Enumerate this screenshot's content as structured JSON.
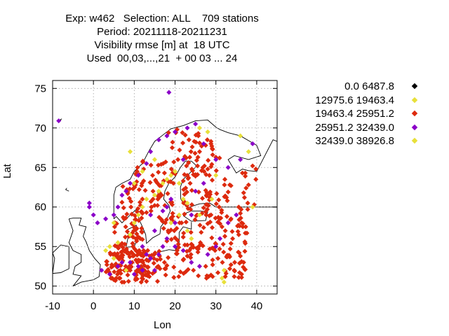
{
  "chart_data": {
    "type": "scatter",
    "title_lines": [
      "Exp: w462   Selection: ALL    709 stations",
      "Period: 20211118-20211231",
      "Visibility rmse [m] at  18 UTC",
      "Used  00,03,...,21  + 00 03 ... 24"
    ],
    "xlabel": "Lon",
    "ylabel": "Lat",
    "xlim": [
      -10,
      45
    ],
    "ylim": [
      49,
      76
    ],
    "xticks": [
      "-10",
      "0",
      "10",
      "20",
      "30",
      "40"
    ],
    "yticks": [
      "50",
      "55",
      "60",
      "65",
      "70",
      "75"
    ],
    "grid": true,
    "legend_position": "right",
    "series": [
      {
        "name": "0.0 6487.8",
        "color": "#000000",
        "points": []
      },
      {
        "name": "12975.6 19463.4",
        "color": "#e8e03a",
        "points": [
          [
            3,
            54.5
          ],
          [
            4,
            55
          ],
          [
            5,
            53.5
          ],
          [
            7,
            53
          ],
          [
            8,
            52
          ],
          [
            6,
            55.5
          ],
          [
            9,
            56.5
          ],
          [
            10,
            58
          ],
          [
            11,
            59
          ],
          [
            12,
            60
          ],
          [
            13,
            61
          ],
          [
            15,
            61.5
          ],
          [
            16,
            62
          ],
          [
            17,
            63
          ],
          [
            18,
            63.5
          ],
          [
            19,
            64
          ],
          [
            20,
            64.5
          ],
          [
            21,
            63
          ],
          [
            22,
            61
          ],
          [
            23,
            60.5
          ],
          [
            21,
            59
          ],
          [
            19,
            58
          ],
          [
            23,
            57
          ],
          [
            24,
            56
          ],
          [
            26,
            59
          ],
          [
            29,
            61
          ],
          [
            30,
            64
          ],
          [
            32,
            50.5
          ],
          [
            31.5,
            51
          ],
          [
            32,
            52
          ],
          [
            10,
            63
          ],
          [
            12,
            64.5
          ],
          [
            9,
            67
          ],
          [
            26,
            70
          ],
          [
            28,
            69.5
          ],
          [
            36,
            69
          ],
          [
            38,
            67
          ],
          [
            39,
            60
          ],
          [
            15,
            66
          ],
          [
            5,
            58
          ]
        ]
      },
      {
        "name": "19463.4 25951.2",
        "color": "#dd2a0e",
        "points": []
      },
      {
        "name": "25951.2 32439.0",
        "color": "#8b00c8",
        "points": [
          [
            -8.5,
            70.9
          ],
          [
            18.5,
            74.5
          ],
          [
            -1,
            60.5
          ],
          [
            -1,
            60
          ],
          [
            0,
            59
          ],
          [
            1,
            58
          ],
          [
            3,
            58.5
          ],
          [
            5,
            59
          ],
          [
            6,
            60
          ],
          [
            7,
            61.5
          ],
          [
            8,
            62
          ],
          [
            9,
            63
          ],
          [
            11,
            64
          ],
          [
            13,
            65.5
          ],
          [
            14,
            67
          ],
          [
            16,
            68.5
          ],
          [
            18,
            69
          ],
          [
            20,
            69.5
          ],
          [
            23,
            70
          ],
          [
            25,
            70.5
          ],
          [
            27,
            68
          ],
          [
            30,
            66
          ],
          [
            33,
            65
          ],
          [
            36,
            66
          ],
          [
            39,
            68
          ],
          [
            12,
            55
          ],
          [
            13,
            54
          ],
          [
            14,
            53.5
          ],
          [
            11,
            52.5
          ],
          [
            12,
            52
          ],
          [
            10,
            51.5
          ],
          [
            9,
            53
          ],
          [
            15,
            52
          ],
          [
            16,
            54
          ],
          [
            17,
            55
          ],
          [
            18,
            56
          ],
          [
            20,
            55
          ],
          [
            22,
            54.5
          ],
          [
            24,
            53
          ],
          [
            26,
            52.5
          ],
          [
            28,
            54
          ],
          [
            30,
            55
          ],
          [
            31,
            56
          ],
          [
            33,
            58
          ],
          [
            35,
            59
          ],
          [
            25,
            62
          ],
          [
            27,
            63
          ],
          [
            22,
            66
          ],
          [
            18,
            60
          ],
          [
            17,
            59.5
          ],
          [
            19,
            61
          ],
          [
            14,
            59
          ],
          [
            2,
            52
          ],
          [
            4,
            51.5
          ],
          [
            6,
            52.5
          ],
          [
            7,
            53
          ],
          [
            15,
            57
          ],
          [
            20,
            58
          ],
          [
            24,
            59
          ]
        ]
      },
      {
        "name": "32439.0 38926.8",
        "color": "#e8e03a",
        "points": []
      }
    ],
    "bulk_series_index": 2
  }
}
